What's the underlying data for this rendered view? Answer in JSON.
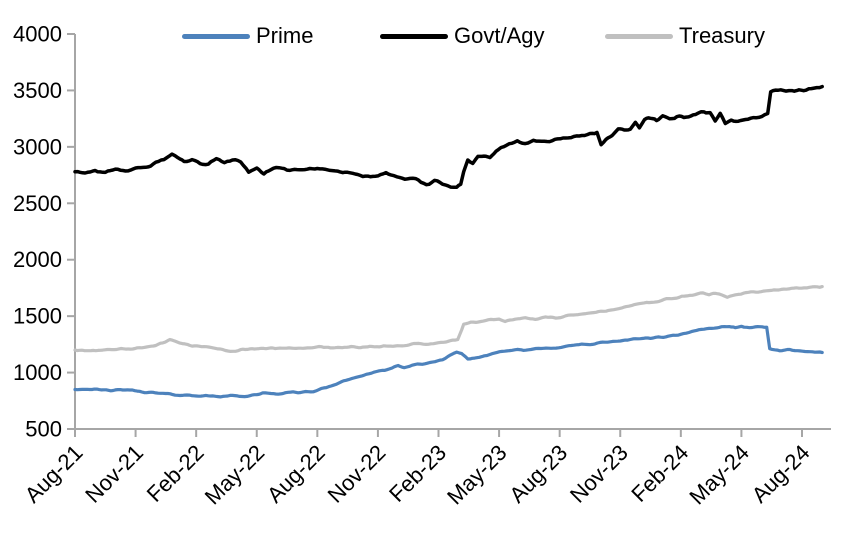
{
  "chart_data": {
    "type": "line",
    "title": "",
    "grid": false,
    "legend": {
      "position": "top"
    },
    "y_axis": {
      "min": 500,
      "max": 4000,
      "step": 500,
      "tick_labels": [
        "4000",
        "3500",
        "3000",
        "2500",
        "2000",
        "1500",
        "1000",
        "500"
      ]
    },
    "x_axis": {
      "unit": "months since Aug-21",
      "tick_months": [
        0,
        3,
        6,
        9,
        12,
        15,
        18,
        21,
        24,
        27,
        30,
        33,
        36
      ],
      "tick_labels": [
        "Aug-21",
        "Nov-21",
        "Feb-22",
        "May-22",
        "Aug-22",
        "Nov-22",
        "Feb-23",
        "May-23",
        "Aug-23",
        "Nov-23",
        "Feb-24",
        "May-24",
        "Aug-24"
      ],
      "label_rotation_deg": -45
    },
    "colors": {
      "axis": "#a6a6a6",
      "text": "#000000"
    },
    "series": [
      {
        "name": "Prime",
        "color": "#4d82bc",
        "points": [
          [
            0,
            850
          ],
          [
            0.6,
            856
          ],
          [
            1.2,
            845
          ],
          [
            2,
            842
          ],
          [
            2.6,
            848
          ],
          [
            3.2,
            832
          ],
          [
            4,
            818
          ],
          [
            4.6,
            810
          ],
          [
            5.2,
            800
          ],
          [
            6,
            797
          ],
          [
            6.6,
            792
          ],
          [
            7.2,
            788
          ],
          [
            7.8,
            795
          ],
          [
            8.4,
            790
          ],
          [
            9,
            806
          ],
          [
            9.3,
            818
          ],
          [
            9.7,
            810
          ],
          [
            10.3,
            815
          ],
          [
            10.8,
            828
          ],
          [
            11.3,
            825
          ],
          [
            11.8,
            832
          ],
          [
            12.2,
            855
          ],
          [
            12.8,
            890
          ],
          [
            13.3,
            928
          ],
          [
            13.8,
            950
          ],
          [
            14.3,
            978
          ],
          [
            14.8,
            998
          ],
          [
            15.2,
            1018
          ],
          [
            15.7,
            1038
          ],
          [
            16,
            1058
          ],
          [
            16.3,
            1042
          ],
          [
            16.7,
            1068
          ],
          [
            17.2,
            1075
          ],
          [
            17.7,
            1092
          ],
          [
            18.2,
            1115
          ],
          [
            18.6,
            1152
          ],
          [
            18.9,
            1178
          ],
          [
            19.15,
            1162
          ],
          [
            19.45,
            1120
          ],
          [
            19.9,
            1132
          ],
          [
            20.4,
            1152
          ],
          [
            20.9,
            1182
          ],
          [
            21.4,
            1198
          ],
          [
            21.9,
            1206
          ],
          [
            22.2,
            1194
          ],
          [
            22.7,
            1208
          ],
          [
            23.2,
            1212
          ],
          [
            23.7,
            1220
          ],
          [
            24.2,
            1228
          ],
          [
            24.7,
            1242
          ],
          [
            25.1,
            1252
          ],
          [
            25.5,
            1244
          ],
          [
            26,
            1262
          ],
          [
            26.5,
            1272
          ],
          [
            27,
            1284
          ],
          [
            27.5,
            1292
          ],
          [
            28,
            1302
          ],
          [
            28.5,
            1306
          ],
          [
            29,
            1312
          ],
          [
            29.5,
            1322
          ],
          [
            30,
            1336
          ],
          [
            30.4,
            1352
          ],
          [
            30.9,
            1378
          ],
          [
            31.4,
            1392
          ],
          [
            31.9,
            1402
          ],
          [
            32.4,
            1412
          ],
          [
            32.7,
            1394
          ],
          [
            33,
            1412
          ],
          [
            33.4,
            1398
          ],
          [
            33.8,
            1408
          ],
          [
            34.25,
            1402
          ],
          [
            34.4,
            1208
          ],
          [
            34.9,
            1196
          ],
          [
            35.4,
            1202
          ],
          [
            35.9,
            1190
          ],
          [
            36.4,
            1186
          ],
          [
            37,
            1178
          ]
        ]
      },
      {
        "name": "Govt/Agy",
        "color": "#000000",
        "points": [
          [
            0,
            2780
          ],
          [
            0.5,
            2768
          ],
          [
            1,
            2790
          ],
          [
            1.5,
            2778
          ],
          [
            2,
            2796
          ],
          [
            2.5,
            2788
          ],
          [
            3,
            2812
          ],
          [
            3.5,
            2820
          ],
          [
            4,
            2862
          ],
          [
            4.4,
            2880
          ],
          [
            4.8,
            2930
          ],
          [
            5.1,
            2898
          ],
          [
            5.4,
            2862
          ],
          [
            5.8,
            2886
          ],
          [
            6.2,
            2856
          ],
          [
            6.6,
            2846
          ],
          [
            7,
            2888
          ],
          [
            7.4,
            2856
          ],
          [
            7.8,
            2886
          ],
          [
            8.2,
            2874
          ],
          [
            8.6,
            2776
          ],
          [
            9,
            2812
          ],
          [
            9.35,
            2762
          ],
          [
            9.7,
            2800
          ],
          [
            10.1,
            2812
          ],
          [
            10.5,
            2792
          ],
          [
            11,
            2806
          ],
          [
            11.5,
            2796
          ],
          [
            12,
            2808
          ],
          [
            12.5,
            2788
          ],
          [
            13,
            2786
          ],
          [
            13.5,
            2766
          ],
          [
            14,
            2756
          ],
          [
            14.5,
            2742
          ],
          [
            15,
            2748
          ],
          [
            15.4,
            2770
          ],
          [
            15.8,
            2742
          ],
          [
            16.2,
            2726
          ],
          [
            16.6,
            2716
          ],
          [
            17,
            2712
          ],
          [
            17.4,
            2668
          ],
          [
            17.8,
            2696
          ],
          [
            18.2,
            2676
          ],
          [
            18.6,
            2652
          ],
          [
            18.9,
            2642
          ],
          [
            19.1,
            2668
          ],
          [
            19.25,
            2780
          ],
          [
            19.45,
            2886
          ],
          [
            19.7,
            2866
          ],
          [
            19.95,
            2912
          ],
          [
            20.25,
            2922
          ],
          [
            20.55,
            2896
          ],
          [
            20.85,
            2962
          ],
          [
            21.1,
            2998
          ],
          [
            21.5,
            3028
          ],
          [
            21.9,
            3044
          ],
          [
            22.3,
            3022
          ],
          [
            22.7,
            3056
          ],
          [
            23.1,
            3046
          ],
          [
            23.5,
            3052
          ],
          [
            23.9,
            3066
          ],
          [
            24.3,
            3078
          ],
          [
            24.7,
            3094
          ],
          [
            25.1,
            3106
          ],
          [
            25.5,
            3112
          ],
          [
            25.85,
            3128
          ],
          [
            26.05,
            3022
          ],
          [
            26.3,
            3066
          ],
          [
            26.6,
            3112
          ],
          [
            26.9,
            3156
          ],
          [
            27.2,
            3148
          ],
          [
            27.5,
            3162
          ],
          [
            27.75,
            3222
          ],
          [
            27.95,
            3168
          ],
          [
            28.2,
            3246
          ],
          [
            28.5,
            3258
          ],
          [
            28.8,
            3236
          ],
          [
            29.1,
            3268
          ],
          [
            29.45,
            3246
          ],
          [
            29.8,
            3272
          ],
          [
            30.15,
            3256
          ],
          [
            30.5,
            3276
          ],
          [
            30.85,
            3298
          ],
          [
            31.15,
            3312
          ],
          [
            31.45,
            3298
          ],
          [
            31.7,
            3236
          ],
          [
            31.95,
            3292
          ],
          [
            32.2,
            3206
          ],
          [
            32.5,
            3238
          ],
          [
            32.85,
            3226
          ],
          [
            33.2,
            3238
          ],
          [
            33.6,
            3250
          ],
          [
            34,
            3262
          ],
          [
            34.3,
            3296
          ],
          [
            34.45,
            3478
          ],
          [
            34.7,
            3496
          ],
          [
            34.95,
            3506
          ],
          [
            35.2,
            3488
          ],
          [
            35.5,
            3492
          ],
          [
            35.85,
            3498
          ],
          [
            36.2,
            3508
          ],
          [
            36.6,
            3522
          ],
          [
            37,
            3534
          ]
        ]
      },
      {
        "name": "Treasury",
        "color": "#c0c0c0",
        "points": [
          [
            0,
            1200
          ],
          [
            0.8,
            1194
          ],
          [
            1.6,
            1200
          ],
          [
            2.4,
            1208
          ],
          [
            3.2,
            1218
          ],
          [
            4,
            1242
          ],
          [
            4.7,
            1292
          ],
          [
            5.2,
            1262
          ],
          [
            5.8,
            1240
          ],
          [
            6.5,
            1228
          ],
          [
            7.2,
            1212
          ],
          [
            7.7,
            1186
          ],
          [
            8.2,
            1202
          ],
          [
            9,
            1210
          ],
          [
            9.8,
            1214
          ],
          [
            10.6,
            1218
          ],
          [
            11.4,
            1222
          ],
          [
            12.2,
            1226
          ],
          [
            13,
            1220
          ],
          [
            13.8,
            1226
          ],
          [
            14.6,
            1228
          ],
          [
            15.4,
            1232
          ],
          [
            16.2,
            1242
          ],
          [
            17,
            1256
          ],
          [
            17.5,
            1248
          ],
          [
            18,
            1268
          ],
          [
            18.5,
            1280
          ],
          [
            18.95,
            1292
          ],
          [
            19.25,
            1422
          ],
          [
            19.6,
            1440
          ],
          [
            20.1,
            1452
          ],
          [
            20.6,
            1466
          ],
          [
            21,
            1476
          ],
          [
            21.3,
            1458
          ],
          [
            21.8,
            1472
          ],
          [
            22.3,
            1482
          ],
          [
            22.8,
            1474
          ],
          [
            23.3,
            1490
          ],
          [
            23.8,
            1484
          ],
          [
            24.3,
            1502
          ],
          [
            24.8,
            1512
          ],
          [
            25.3,
            1522
          ],
          [
            25.8,
            1532
          ],
          [
            26.3,
            1546
          ],
          [
            26.8,
            1560
          ],
          [
            27.3,
            1582
          ],
          [
            27.8,
            1602
          ],
          [
            28.3,
            1618
          ],
          [
            28.8,
            1632
          ],
          [
            29.3,
            1650
          ],
          [
            29.8,
            1664
          ],
          [
            30.3,
            1680
          ],
          [
            30.7,
            1694
          ],
          [
            31.1,
            1706
          ],
          [
            31.4,
            1692
          ],
          [
            31.7,
            1704
          ],
          [
            32,
            1694
          ],
          [
            32.3,
            1668
          ],
          [
            32.7,
            1690
          ],
          [
            33.1,
            1702
          ],
          [
            33.6,
            1714
          ],
          [
            34.1,
            1724
          ],
          [
            34.6,
            1730
          ],
          [
            35.1,
            1736
          ],
          [
            35.6,
            1742
          ],
          [
            36.1,
            1750
          ],
          [
            36.5,
            1756
          ],
          [
            37,
            1762
          ]
        ]
      }
    ]
  }
}
